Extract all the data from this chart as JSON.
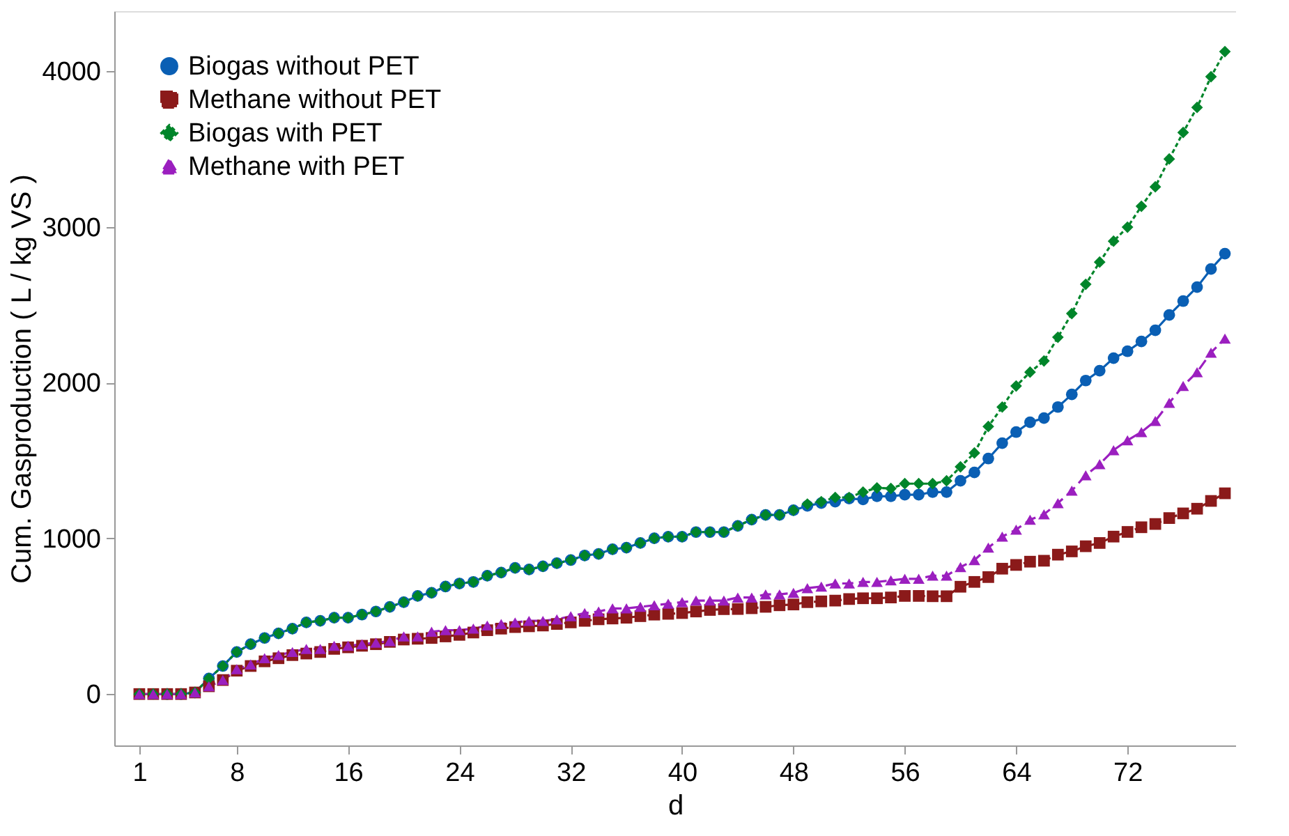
{
  "chart_data": {
    "type": "line",
    "xlabel": "d",
    "ylabel": "Cum. Gasproduction ( L / kg VS )",
    "x": [
      1,
      2,
      3,
      4,
      5,
      6,
      7,
      8,
      9,
      10,
      11,
      12,
      13,
      14,
      15,
      16,
      17,
      18,
      19,
      20,
      21,
      22,
      23,
      24,
      25,
      26,
      27,
      28,
      29,
      30,
      31,
      32,
      33,
      34,
      35,
      36,
      37,
      38,
      39,
      40,
      41,
      42,
      43,
      44,
      45,
      46,
      47,
      48,
      49,
      50,
      51,
      52,
      53,
      54,
      55,
      56,
      57,
      58,
      59,
      60,
      61,
      62,
      63,
      64,
      65,
      66,
      67,
      68,
      69,
      70,
      71,
      72,
      73,
      74,
      75,
      76,
      77,
      78,
      79
    ],
    "xlim": [
      -0.8,
      79.8
    ],
    "xticks": [
      1,
      8,
      16,
      24,
      32,
      40,
      48,
      56,
      64,
      72
    ],
    "ylim": [
      -330,
      4385
    ],
    "yticks": [
      0,
      1000,
      2000,
      3000,
      4000
    ],
    "grid": false,
    "legend": "top left",
    "series": [
      {
        "name": "Biogas without PET",
        "color": "#0a5fb4",
        "marker": "circle",
        "line_style": "solid",
        "values": [
          null,
          null,
          0,
          0,
          10,
          100,
          180,
          270,
          320,
          360,
          390,
          420,
          460,
          470,
          490,
          490,
          510,
          530,
          560,
          590,
          630,
          650,
          690,
          710,
          720,
          760,
          780,
          810,
          800,
          820,
          840,
          860,
          890,
          900,
          930,
          940,
          970,
          1000,
          1010,
          1010,
          1040,
          1040,
          1040,
          1080,
          1120,
          1150,
          1150,
          1180,
          1208,
          1226,
          1235,
          1255,
          1250,
          1270,
          1270,
          1280,
          1280,
          1297,
          1297,
          1369,
          1423,
          1512,
          1611,
          1682,
          1745,
          1772,
          1843,
          1924,
          2013,
          2076,
          2157,
          2201,
          2264,
          2336,
          2434,
          2523,
          2613,
          2729,
          2828
        ]
      },
      {
        "name": "Methane without PET",
        "color": "#8b1a1a",
        "marker": "square",
        "line_style": "dashed",
        "values": [
          0,
          0,
          0,
          0,
          10,
          50,
          90,
          150,
          180,
          210,
          230,
          250,
          260,
          270,
          290,
          300,
          310,
          320,
          335,
          350,
          355,
          360,
          370,
          380,
          395,
          410,
          420,
          430,
          435,
          440,
          450,
          460,
          470,
          480,
          485,
          490,
          500,
          510,
          515,
          520,
          530,
          540,
          545,
          546,
          551,
          560,
          570,
          575,
          590,
          595,
          600,
          610,
          615,
          615,
          620,
          630,
          630,
          628,
          628,
          689,
          720,
          751,
          805,
          829,
          850,
          856,
          895,
          916,
          949,
          970,
          1011,
          1041,
          1071,
          1092,
          1130,
          1160,
          1190,
          1240,
          1289
        ]
      },
      {
        "name": "Biogas with PET",
        "color": "#00852a",
        "marker": "diamond",
        "line_style": "dotted",
        "values": [
          0,
          0,
          0,
          0,
          10,
          100,
          180,
          270,
          320,
          360,
          390,
          420,
          460,
          470,
          490,
          490,
          510,
          530,
          560,
          590,
          630,
          650,
          690,
          710,
          720,
          760,
          780,
          810,
          800,
          820,
          840,
          860,
          890,
          900,
          930,
          940,
          970,
          1000,
          1010,
          1010,
          1040,
          1040,
          1040,
          1080,
          1120,
          1150,
          1150,
          1180,
          1220,
          1235,
          1262,
          1262,
          1297,
          1324,
          1320,
          1351,
          1351,
          1351,
          1369,
          1459,
          1548,
          1718,
          1843,
          1978,
          2067,
          2139,
          2291,
          2443,
          2631,
          2774,
          2908,
          2998,
          3132,
          3257,
          3436,
          3606,
          3767,
          3964,
          4125
        ]
      },
      {
        "name": "Methane with PET",
        "color": "#9b1fbf",
        "marker": "triangle",
        "line_style": "dashed",
        "values": [
          0,
          0,
          0,
          0,
          10,
          50,
          90,
          160,
          190,
          230,
          250,
          270,
          290,
          290,
          310,
          310,
          320,
          330,
          340,
          370,
          370,
          400,
          410,
          410,
          420,
          440,
          450,
          460,
          470,
          470,
          480,
          500,
          520,
          530,
          550,
          550,
          560,
          570,
          580,
          590,
          600,
          600,
          600,
          620,
          620,
          640,
          640,
          650,
          680,
          690,
          710,
          710,
          720,
          720,
          730,
          740,
          740,
          760,
          760,
          815,
          860,
          940,
          1011,
          1056,
          1119,
          1154,
          1226,
          1306,
          1405,
          1476,
          1566,
          1629,
          1682,
          1754,
          1870,
          1978,
          2067,
          2192,
          2282
        ]
      }
    ]
  }
}
